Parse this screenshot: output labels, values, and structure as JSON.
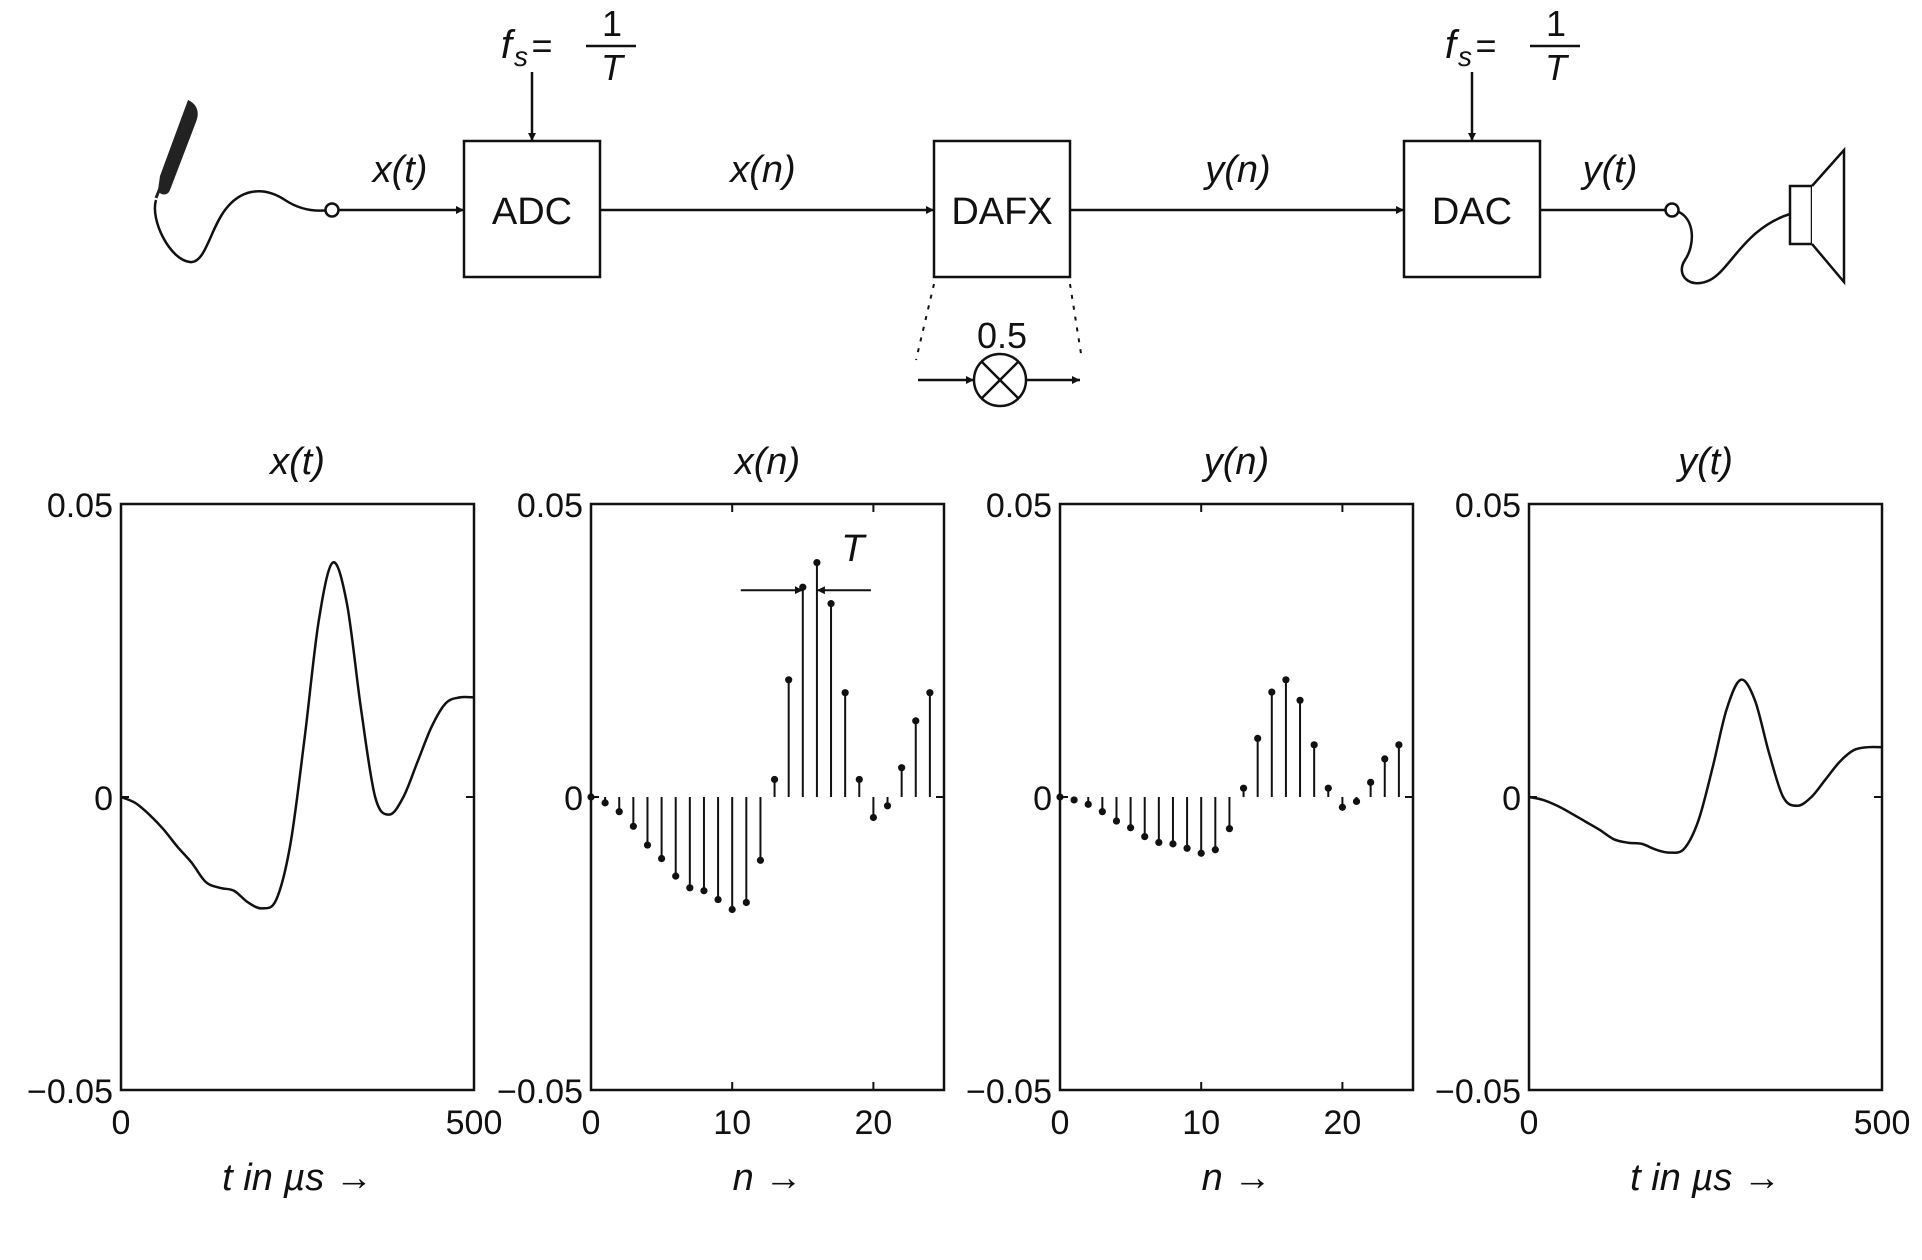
{
  "diagram": {
    "blocks": {
      "adc": "ADC",
      "dafx": "DAFX",
      "dac": "DAC"
    },
    "signals": {
      "x_t": "x(t)",
      "x_n": "x(n)",
      "y_n": "y(n)",
      "y_t": "y(t)"
    },
    "sample_rate": {
      "lhs": "f",
      "sub": "s",
      "eq": "=",
      "num": "1",
      "den": "T"
    },
    "gain": "0.5",
    "icons": [
      "microphone-icon",
      "loudspeaker-icon",
      "multiplier-icon"
    ]
  },
  "chart_data": [
    {
      "type": "line",
      "title": "x(t)",
      "xlabel": "t in µs →",
      "xlim": [
        0,
        500
      ],
      "ylim": [
        -0.05,
        0.05
      ],
      "xticks": [
        "0",
        "500"
      ],
      "yticks": [
        "0.05",
        "0",
        "−0.05"
      ],
      "x": [
        0,
        20,
        40,
        60,
        80,
        100,
        120,
        140,
        160,
        180,
        200,
        220,
        240,
        260,
        280,
        300,
        320,
        340,
        360,
        380,
        400,
        420,
        440,
        460,
        480,
        500
      ],
      "y": [
        0,
        -0.001,
        -0.003,
        -0.0055,
        -0.0085,
        -0.0112,
        -0.0145,
        -0.0155,
        -0.016,
        -0.018,
        -0.019,
        -0.0175,
        -0.008,
        0.01,
        0.03,
        0.04,
        0.033,
        0.015,
        0.0,
        -0.003,
        0.0,
        0.006,
        0.012,
        0.016,
        0.017,
        0.017
      ]
    },
    {
      "type": "stem",
      "title": "x(n)",
      "xlabel": "n →",
      "xlim": [
        0,
        25
      ],
      "ylim": [
        -0.05,
        0.05
      ],
      "xticks": [
        "0",
        "10",
        "20"
      ],
      "yticks": [
        "0.05",
        "0",
        "−0.05"
      ],
      "annotation": "T",
      "x": [
        0,
        1,
        2,
        3,
        4,
        5,
        6,
        7,
        8,
        9,
        10,
        11,
        12,
        13,
        14,
        15,
        16,
        17,
        18,
        19,
        20,
        21,
        22,
        23,
        24
      ],
      "y": [
        0,
        -0.001,
        -0.0025,
        -0.005,
        -0.0082,
        -0.0105,
        -0.0135,
        -0.0155,
        -0.016,
        -0.0175,
        -0.0192,
        -0.018,
        -0.0108,
        0.003,
        0.02,
        0.0358,
        0.04,
        0.033,
        0.0178,
        0.003,
        -0.0035,
        -0.0015,
        0.005,
        0.013,
        0.0178
      ]
    },
    {
      "type": "stem",
      "title": "y(n)",
      "xlabel": "n →",
      "xlim": [
        0,
        25
      ],
      "ylim": [
        -0.05,
        0.05
      ],
      "xticks": [
        "0",
        "10",
        "20"
      ],
      "yticks": [
        "0.05",
        "0",
        "−0.05"
      ],
      "x": [
        0,
        1,
        2,
        3,
        4,
        5,
        6,
        7,
        8,
        9,
        10,
        11,
        12,
        13,
        14,
        15,
        16,
        17,
        18,
        19,
        20,
        21,
        22,
        23,
        24
      ],
      "y": [
        0,
        -0.0005,
        -0.00125,
        -0.0025,
        -0.0041,
        -0.00525,
        -0.00675,
        -0.00775,
        -0.008,
        -0.00875,
        -0.0096,
        -0.009,
        -0.0054,
        0.0015,
        0.01,
        0.0179,
        0.02,
        0.0165,
        0.0089,
        0.0015,
        -0.00175,
        -0.00075,
        0.0025,
        0.0065,
        0.0089
      ]
    },
    {
      "type": "line",
      "title": "y(t)",
      "xlabel": "t in µs →",
      "xlim": [
        0,
        500
      ],
      "ylim": [
        -0.05,
        0.05
      ],
      "xticks": [
        "0",
        "500"
      ],
      "yticks": [
        "0.05",
        "0",
        "−0.05"
      ],
      "x": [
        0,
        20,
        40,
        60,
        80,
        100,
        120,
        140,
        160,
        180,
        200,
        220,
        240,
        260,
        280,
        300,
        320,
        340,
        360,
        380,
        400,
        420,
        440,
        460,
        480,
        500
      ],
      "y": [
        0,
        -0.0005,
        -0.0015,
        -0.0028,
        -0.0042,
        -0.0056,
        -0.0072,
        -0.0078,
        -0.008,
        -0.009,
        -0.0095,
        -0.0088,
        -0.004,
        0.005,
        0.015,
        0.02,
        0.0165,
        0.0075,
        0.0,
        -0.0015,
        0.0,
        0.003,
        0.006,
        0.008,
        0.0085,
        0.0085
      ]
    }
  ]
}
